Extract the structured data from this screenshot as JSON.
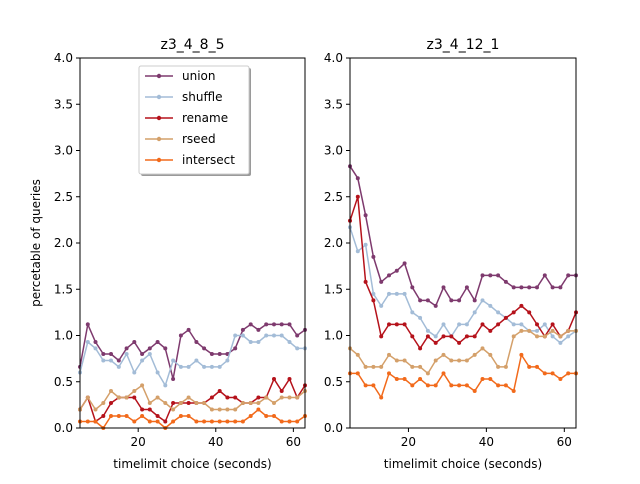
{
  "chart_data": {
    "type": "line",
    "xlim": [
      5,
      63
    ],
    "ylim": [
      0,
      4
    ],
    "xlabel": "timelimit choice (seconds)",
    "ylabel": "percetable of queries",
    "xticks": [
      20,
      40,
      60
    ],
    "yticks": [
      "0.0",
      "0.5",
      "1.0",
      "1.5",
      "2.0",
      "2.5",
      "3.0",
      "3.5",
      "4.0"
    ],
    "legend": {
      "location": "top-center of left panel",
      "entries": [
        "union",
        "shuffle",
        "rename",
        "rseed",
        "intersect"
      ]
    },
    "x": [
      5,
      6,
      7,
      8,
      9,
      10,
      11,
      12,
      13,
      14,
      15,
      16,
      17,
      18,
      19,
      20,
      21,
      22,
      23,
      24,
      25,
      26,
      27,
      28,
      29,
      30,
      31,
      32,
      33,
      34,
      35,
      36,
      37,
      38,
      39,
      40,
      41,
      42,
      43,
      44,
      45,
      46,
      47,
      48,
      49,
      50,
      51,
      52,
      53,
      54,
      55,
      56,
      57,
      58,
      59,
      60,
      61,
      62,
      63
    ],
    "charts": [
      {
        "title": "z3_4_8_5",
        "x": [
          5,
          7,
          9,
          11,
          13,
          15,
          17,
          19,
          21,
          23,
          25,
          27,
          29,
          31,
          33,
          35,
          37,
          39,
          41,
          43,
          45,
          47,
          49,
          51,
          53,
          55,
          57,
          59,
          61,
          63
        ],
        "series": [
          {
            "name": "union",
            "color": "#7e3a6e",
            "values": [
              0.66,
              1.12,
              0.93,
              0.8,
              0.8,
              0.73,
              0.86,
              0.93,
              0.8,
              0.86,
              0.93,
              0.86,
              0.53,
              1.0,
              1.06,
              0.93,
              0.86,
              0.8,
              0.8,
              0.8,
              0.86,
              1.06,
              1.12,
              1.06,
              1.12,
              1.12,
              1.12,
              1.12,
              1.0,
              1.06
            ]
          },
          {
            "name": "shuffle",
            "color": "#a3bcd7",
            "values": [
              0.6,
              0.93,
              0.86,
              0.73,
              0.73,
              0.66,
              0.8,
              0.6,
              0.73,
              0.8,
              0.6,
              0.46,
              0.73,
              0.66,
              0.66,
              0.73,
              0.66,
              0.66,
              0.66,
              0.73,
              1.0,
              1.0,
              0.93,
              0.93,
              1.0,
              1.0,
              1.0,
              0.93,
              0.86,
              0.86
            ]
          },
          {
            "name": "rename",
            "color": "#b5121b",
            "values": [
              0.2,
              0.33,
              0.07,
              0.13,
              0.27,
              0.33,
              0.33,
              0.33,
              0.2,
              0.2,
              0.13,
              0.07,
              0.27,
              0.27,
              0.27,
              0.27,
              0.27,
              0.33,
              0.4,
              0.33,
              0.33,
              0.27,
              0.27,
              0.33,
              0.33,
              0.53,
              0.4,
              0.53,
              0.33,
              0.46
            ]
          },
          {
            "name": "rseed",
            "color": "#d4a06a",
            "values": [
              0.2,
              0.33,
              0.2,
              0.27,
              0.4,
              0.33,
              0.33,
              0.4,
              0.46,
              0.27,
              0.33,
              0.27,
              0.2,
              0.27,
              0.33,
              0.27,
              0.27,
              0.2,
              0.2,
              0.2,
              0.2,
              0.27,
              0.27,
              0.27,
              0.33,
              0.27,
              0.33,
              0.33,
              0.33,
              0.4
            ]
          },
          {
            "name": "intersect",
            "color": "#f26a1b",
            "values": [
              0.07,
              0.07,
              0.07,
              0.0,
              0.13,
              0.13,
              0.13,
              0.07,
              0.13,
              0.07,
              0.07,
              0.0,
              0.07,
              0.13,
              0.13,
              0.07,
              0.07,
              0.07,
              0.07,
              0.07,
              0.07,
              0.07,
              0.13,
              0.2,
              0.13,
              0.13,
              0.07,
              0.07,
              0.07,
              0.13
            ]
          }
        ]
      },
      {
        "title": "z3_4_12_1",
        "x": [
          5,
          7,
          9,
          11,
          13,
          15,
          17,
          19,
          21,
          23,
          25,
          27,
          29,
          31,
          33,
          35,
          37,
          39,
          41,
          43,
          45,
          47,
          49,
          51,
          53,
          55,
          57,
          59,
          61,
          63
        ],
        "series": [
          {
            "name": "union",
            "color": "#7e3a6e",
            "values": [
              2.83,
              2.7,
              2.3,
              1.85,
              1.58,
              1.65,
              1.7,
              1.78,
              1.52,
              1.38,
              1.38,
              1.32,
              1.52,
              1.38,
              1.38,
              1.52,
              1.38,
              1.65,
              1.65,
              1.65,
              1.58,
              1.52,
              1.52,
              1.52,
              1.52,
              1.65,
              1.52,
              1.52,
              1.65,
              1.65
            ]
          },
          {
            "name": "shuffle",
            "color": "#a3bcd7",
            "values": [
              2.17,
              1.91,
              1.98,
              1.45,
              1.32,
              1.45,
              1.45,
              1.45,
              1.25,
              1.19,
              1.05,
              0.99,
              1.12,
              0.99,
              1.12,
              1.12,
              1.25,
              1.38,
              1.32,
              1.25,
              1.19,
              1.12,
              1.12,
              1.05,
              1.05,
              1.12,
              0.99,
              0.92,
              0.99,
              1.05
            ]
          },
          {
            "name": "rename",
            "color": "#b5121b",
            "values": [
              2.24,
              2.5,
              1.58,
              1.38,
              0.99,
              1.12,
              1.12,
              1.12,
              0.99,
              0.86,
              0.99,
              0.92,
              0.99,
              0.99,
              0.92,
              0.99,
              0.99,
              1.12,
              1.05,
              1.12,
              1.19,
              1.25,
              1.32,
              1.25,
              1.12,
              0.99,
              1.12,
              0.99,
              1.05,
              1.25
            ]
          },
          {
            "name": "rseed",
            "color": "#d4a06a",
            "values": [
              0.86,
              0.79,
              0.66,
              0.66,
              0.66,
              0.79,
              0.73,
              0.73,
              0.66,
              0.66,
              0.59,
              0.73,
              0.79,
              0.73,
              0.73,
              0.73,
              0.79,
              0.86,
              0.79,
              0.66,
              0.66,
              0.99,
              1.05,
              1.05,
              0.99,
              0.99,
              1.05,
              0.99,
              1.05,
              1.05
            ]
          },
          {
            "name": "intersect",
            "color": "#f26a1b",
            "values": [
              0.59,
              0.59,
              0.46,
              0.46,
              0.33,
              0.59,
              0.53,
              0.53,
              0.46,
              0.53,
              0.46,
              0.46,
              0.59,
              0.46,
              0.46,
              0.46,
              0.4,
              0.53,
              0.53,
              0.46,
              0.46,
              0.4,
              0.79,
              0.66,
              0.66,
              0.59,
              0.59,
              0.53,
              0.59,
              0.59
            ]
          }
        ]
      }
    ]
  }
}
